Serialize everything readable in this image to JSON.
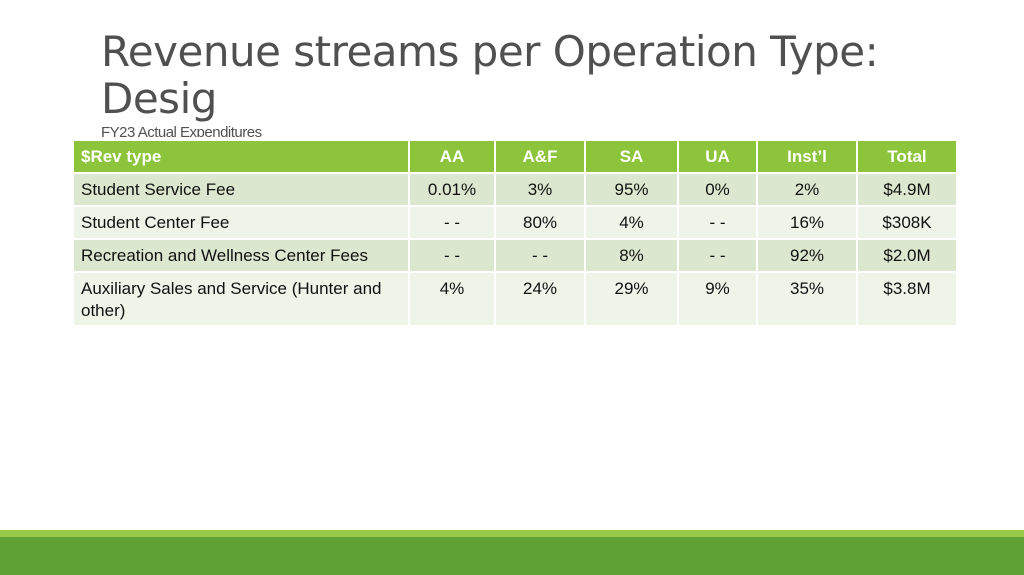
{
  "slide": {
    "title": "Revenue streams per Operation Type: Desig",
    "subtitle": "FY23 Actual Expenditures"
  },
  "table": {
    "headers": [
      "$Rev type",
      "AA",
      "A&F",
      "SA",
      "UA",
      "Inst’l",
      "Total"
    ],
    "rows": [
      [
        "Student Service Fee",
        "0.01%",
        "3%",
        "95%",
        "0%",
        "2%",
        "$4.9M"
      ],
      [
        "Student Center Fee",
        "- -",
        "80%",
        "4%",
        "- -",
        "16%",
        "$308K"
      ],
      [
        "Recreation and Wellness Center Fees",
        "- -",
        "- -",
        "8%",
        "- -",
        "92%",
        "$2.0M"
      ],
      [
        "Auxiliary Sales and Service (Hunter and other)",
        "4%",
        "24%",
        "29%",
        "9%",
        "35%",
        "$3.8M"
      ]
    ]
  },
  "colors": {
    "header_green": "#8cc43c",
    "row_band_dark": "#dbe8cf",
    "row_band_light": "#eef4e8",
    "footer_light_green": "#98c948",
    "footer_dark_green": "#5fa132",
    "title_gray": "#505050"
  }
}
